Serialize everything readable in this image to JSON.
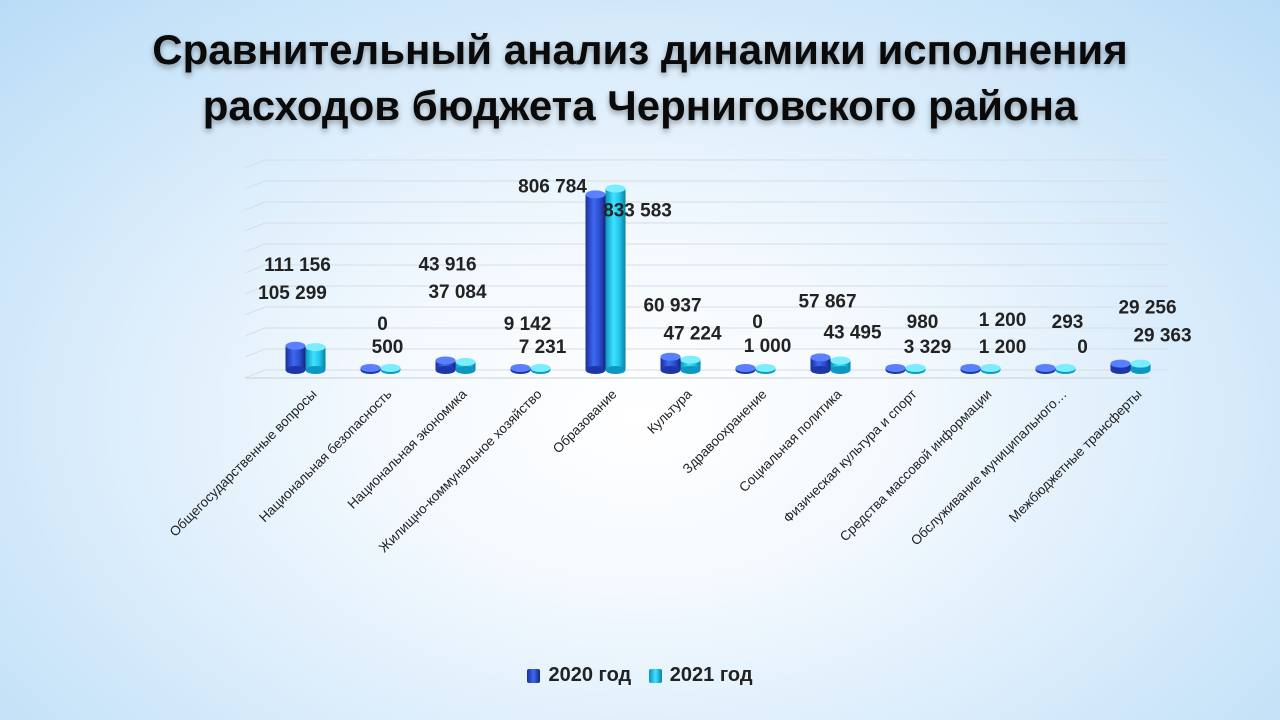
{
  "chart_data": {
    "type": "bar",
    "title_lines": [
      "Сравнительный анализ динамики исполнения",
      "расходов бюджета Черниговского района"
    ],
    "categories": [
      "Общегосударственные вопросы",
      "Национальная безопасность",
      "Национальная экономика",
      "Жилищно-коммунальное хозяйство",
      "Образование",
      "Культура",
      "Здравоохранение",
      "Социальная политика",
      "Физическая культура и спорт",
      "Средства массовой информации",
      "Обслуживание муниципального…",
      "Межбюджетные трансферты"
    ],
    "series": [
      {
        "name": "2020 год",
        "color": "#2f54d6",
        "values": [
          111156,
          0,
          43916,
          9142,
          806784,
          60937,
          0,
          57867,
          980,
          1200,
          293,
          29256
        ],
        "labels": [
          "111 156",
          "0",
          "43 916",
          "9 142",
          "806 784",
          "60 937",
          "0",
          "57 867",
          "980",
          "1 200",
          "293",
          "29 256"
        ]
      },
      {
        "name": "2021 год",
        "color": "#1ec6ea",
        "values": [
          105299,
          500,
          37084,
          7231,
          833583,
          47224,
          1000,
          43495,
          3329,
          1200,
          0,
          29363
        ],
        "labels": [
          "105 299",
          "500",
          "37 084",
          "7 231",
          "833 583",
          "47 224",
          "1 000",
          "43 495",
          "3 329",
          "1 200",
          "0",
          "29 363"
        ]
      }
    ],
    "ylim": [
      0,
      900000
    ],
    "grid": true,
    "legend_position": "bottom"
  }
}
